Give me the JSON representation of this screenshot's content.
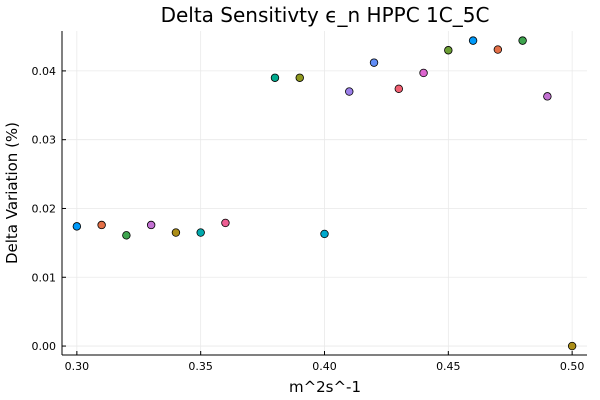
{
  "chart_data": {
    "type": "scatter",
    "title": "Delta Sensitivty ϵ_n HPPC 1C_5C",
    "xlabel": "m^2s^-1",
    "ylabel": "Delta Variation (%)",
    "xlim": [
      0.294,
      0.506
    ],
    "ylim": [
      -0.0013,
      0.0458
    ],
    "x_ticks": [
      0.3,
      0.35,
      0.4,
      0.45,
      0.5
    ],
    "x_tick_labels": [
      "0.30",
      "0.35",
      "0.40",
      "0.45",
      "0.50"
    ],
    "y_ticks": [
      0.0,
      0.01,
      0.02,
      0.03,
      0.04
    ],
    "y_tick_labels": [
      "0.00",
      "0.01",
      "0.02",
      "0.03",
      "0.04"
    ],
    "grid": true,
    "legend": "none",
    "points": [
      {
        "x": 0.3,
        "y": 0.0174,
        "color": "#009AFA"
      },
      {
        "x": 0.31,
        "y": 0.0176,
        "color": "#E36F47"
      },
      {
        "x": 0.32,
        "y": 0.0161,
        "color": "#3EA44E"
      },
      {
        "x": 0.33,
        "y": 0.0176,
        "color": "#C371D2"
      },
      {
        "x": 0.34,
        "y": 0.0165,
        "color": "#AC8E18"
      },
      {
        "x": 0.35,
        "y": 0.0165,
        "color": "#00A9AD"
      },
      {
        "x": 0.36,
        "y": 0.0179,
        "color": "#ED5E93"
      },
      {
        "x": 0.38,
        "y": 0.039,
        "color": "#00A98D"
      },
      {
        "x": 0.39,
        "y": 0.039,
        "color": "#8E971E"
      },
      {
        "x": 0.4,
        "y": 0.0163,
        "color": "#00A9CD"
      },
      {
        "x": 0.41,
        "y": 0.037,
        "color": "#9B7FE9"
      },
      {
        "x": 0.42,
        "y": 0.0412,
        "color": "#618DF6"
      },
      {
        "x": 0.43,
        "y": 0.0374,
        "color": "#F16072"
      },
      {
        "x": 0.44,
        "y": 0.0397,
        "color": "#DC65CF"
      },
      {
        "x": 0.45,
        "y": 0.043,
        "color": "#6C9E34"
      },
      {
        "x": 0.46,
        "y": 0.0444,
        "color": "#009AFA"
      },
      {
        "x": 0.47,
        "y": 0.0431,
        "color": "#E36F47"
      },
      {
        "x": 0.48,
        "y": 0.0444,
        "color": "#3EA44E"
      },
      {
        "x": 0.49,
        "y": 0.0363,
        "color": "#C371D2"
      },
      {
        "x": 0.5,
        "y": 0.0,
        "color": "#AC8E18"
      }
    ]
  }
}
